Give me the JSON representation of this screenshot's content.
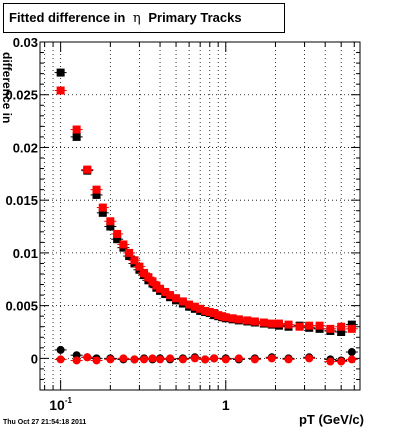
{
  "title": {
    "prefix": "Fitted difference in",
    "symbol": "η",
    "suffix": "Primary Tracks"
  },
  "timestamp": "Thu Oct 27 21:54:18 2011",
  "colors": {
    "black_series": "#000000",
    "red_series": "#ff0000",
    "grid": "#000000"
  },
  "chart_data": {
    "type": "scatter",
    "title": "Fitted difference in η Primary Tracks",
    "xlabel": "pT (GeV/c)",
    "ylabel": "difference in",
    "x_scale": "log",
    "xlim": [
      0.075,
      6.5
    ],
    "ylim": [
      -0.003,
      0.03
    ],
    "grid": true,
    "x_ticks": [
      {
        "value": 0.1,
        "label": "10",
        "sup": "-1"
      },
      {
        "value": 1,
        "label": "1",
        "sup": ""
      }
    ],
    "y_ticks": [
      {
        "value": 0,
        "label": "0"
      },
      {
        "value": 0.005,
        "label": "0.005"
      },
      {
        "value": 0.01,
        "label": "0.01"
      },
      {
        "value": 0.015,
        "label": "0.015"
      },
      {
        "value": 0.02,
        "label": "0.02"
      },
      {
        "value": 0.025,
        "label": "0.025"
      },
      {
        "value": 0.03,
        "label": "0.03"
      }
    ],
    "series": [
      {
        "marker": "square",
        "color": "#000000",
        "points": [
          [
            0.1,
            0.0271
          ],
          [
            0.125,
            0.021
          ],
          [
            0.145,
            0.0178
          ],
          [
            0.165,
            0.0155
          ],
          [
            0.18,
            0.0138
          ],
          [
            0.2,
            0.0125
          ],
          [
            0.22,
            0.0113
          ],
          [
            0.24,
            0.0105
          ],
          [
            0.26,
            0.0097
          ],
          [
            0.28,
            0.009
          ],
          [
            0.3,
            0.0084
          ],
          [
            0.32,
            0.0079
          ],
          [
            0.34,
            0.0074
          ],
          [
            0.36,
            0.0071
          ],
          [
            0.38,
            0.0067
          ],
          [
            0.4,
            0.0064
          ],
          [
            0.43,
            0.0061
          ],
          [
            0.46,
            0.0058
          ],
          [
            0.5,
            0.0055
          ],
          [
            0.55,
            0.0052
          ],
          [
            0.6,
            0.0049
          ],
          [
            0.65,
            0.0047
          ],
          [
            0.7,
            0.0045
          ],
          [
            0.75,
            0.0044
          ],
          [
            0.8,
            0.0043
          ],
          [
            0.85,
            0.0041
          ],
          [
            0.9,
            0.004
          ],
          [
            0.95,
            0.0039
          ],
          [
            1.0,
            0.0038
          ],
          [
            1.1,
            0.0037
          ],
          [
            1.2,
            0.0036
          ],
          [
            1.35,
            0.0035
          ],
          [
            1.5,
            0.0034
          ],
          [
            1.7,
            0.0033
          ],
          [
            1.9,
            0.0032
          ],
          [
            2.1,
            0.0031
          ],
          [
            2.4,
            0.003
          ],
          [
            2.8,
            0.0031
          ],
          [
            3.2,
            0.0029
          ],
          [
            3.7,
            0.0028
          ],
          [
            4.3,
            0.0026
          ],
          [
            5.0,
            0.0025
          ],
          [
            5.8,
            0.0032
          ]
        ]
      },
      {
        "marker": "square",
        "color": "#ff0000",
        "points": [
          [
            0.1,
            0.0254
          ],
          [
            0.125,
            0.0217
          ],
          [
            0.145,
            0.0179
          ],
          [
            0.165,
            0.016
          ],
          [
            0.18,
            0.0143
          ],
          [
            0.2,
            0.013
          ],
          [
            0.22,
            0.0118
          ],
          [
            0.24,
            0.0108
          ],
          [
            0.26,
            0.01
          ],
          [
            0.28,
            0.0093
          ],
          [
            0.3,
            0.0087
          ],
          [
            0.32,
            0.0081
          ],
          [
            0.34,
            0.0077
          ],
          [
            0.36,
            0.0073
          ],
          [
            0.38,
            0.0069
          ],
          [
            0.4,
            0.0066
          ],
          [
            0.43,
            0.0063
          ],
          [
            0.46,
            0.006
          ],
          [
            0.5,
            0.0057
          ],
          [
            0.55,
            0.0054
          ],
          [
            0.6,
            0.0051
          ],
          [
            0.65,
            0.0049
          ],
          [
            0.7,
            0.0047
          ],
          [
            0.75,
            0.0045
          ],
          [
            0.8,
            0.0044
          ],
          [
            0.85,
            0.0043
          ],
          [
            0.9,
            0.0041
          ],
          [
            0.95,
            0.004
          ],
          [
            1.0,
            0.0039
          ],
          [
            1.1,
            0.0038
          ],
          [
            1.2,
            0.0037
          ],
          [
            1.35,
            0.0036
          ],
          [
            1.5,
            0.0035
          ],
          [
            1.7,
            0.0034
          ],
          [
            1.9,
            0.0033
          ],
          [
            2.1,
            0.0033
          ],
          [
            2.4,
            0.0032
          ],
          [
            2.8,
            0.003
          ],
          [
            3.2,
            0.0031
          ],
          [
            3.7,
            0.0031
          ],
          [
            4.3,
            0.0028
          ],
          [
            5.0,
            0.003
          ],
          [
            5.8,
            0.0028
          ]
        ]
      },
      {
        "marker": "circle",
        "color": "#000000",
        "points": [
          [
            0.1,
            0.0008
          ],
          [
            0.125,
            0.0003
          ],
          [
            0.145,
            0.0001
          ],
          [
            0.165,
            0.0
          ],
          [
            0.2,
            0.0
          ],
          [
            0.24,
            -0.0001
          ],
          [
            0.28,
            -0.0001
          ],
          [
            0.32,
            0.0
          ],
          [
            0.36,
            -0.0001
          ],
          [
            0.4,
            0.0
          ],
          [
            0.46,
            -0.0001
          ],
          [
            0.55,
            0.0
          ],
          [
            0.65,
            0.0001
          ],
          [
            0.75,
            -0.0001
          ],
          [
            0.85,
            0.0
          ],
          [
            1.0,
            0.0
          ],
          [
            1.2,
            -0.0001
          ],
          [
            1.5,
            0.0
          ],
          [
            1.9,
            0.0001
          ],
          [
            2.4,
            0.0
          ],
          [
            3.2,
            0.0001
          ],
          [
            4.3,
            -0.0001
          ],
          [
            5.0,
            -0.0002
          ],
          [
            5.8,
            0.0006
          ]
        ]
      },
      {
        "marker": "circle",
        "color": "#ff0000",
        "points": [
          [
            0.1,
            -0.0001
          ],
          [
            0.125,
            -0.0002
          ],
          [
            0.145,
            0.0001
          ],
          [
            0.165,
            -0.0002
          ],
          [
            0.2,
            -0.0001
          ],
          [
            0.24,
            0.0
          ],
          [
            0.28,
            -0.0001
          ],
          [
            0.32,
            -0.0001
          ],
          [
            0.36,
            0.0
          ],
          [
            0.4,
            -0.0001
          ],
          [
            0.46,
            0.0
          ],
          [
            0.55,
            -0.0001
          ],
          [
            0.65,
            0.0
          ],
          [
            0.75,
            -0.0001
          ],
          [
            0.85,
            0.0
          ],
          [
            1.0,
            -0.0001
          ],
          [
            1.2,
            0.0
          ],
          [
            1.5,
            -0.0001
          ],
          [
            1.9,
            0.0
          ],
          [
            2.4,
            -0.0001
          ],
          [
            3.2,
            0.0
          ],
          [
            4.3,
            -0.0003
          ],
          [
            5.0,
            -0.0003
          ],
          [
            5.8,
            -0.0001
          ]
        ]
      }
    ]
  }
}
